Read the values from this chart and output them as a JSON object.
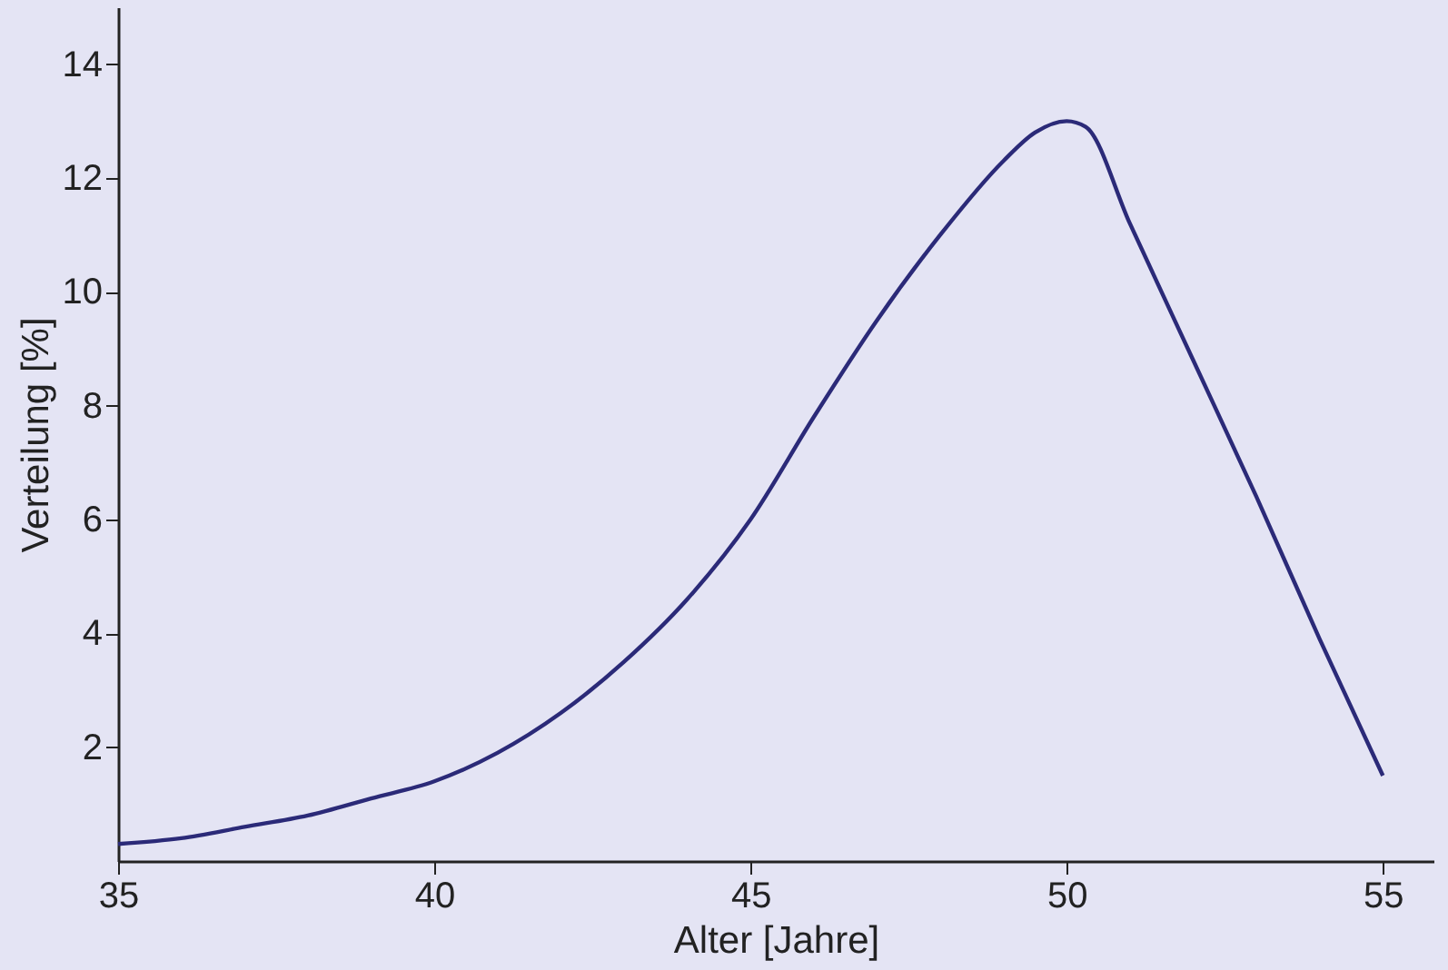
{
  "chart_data": {
    "type": "line",
    "xlabel": "Alter [Jahre]",
    "ylabel": "Verteilung [%]",
    "x": [
      35,
      36,
      37,
      38,
      39,
      40,
      41,
      42,
      43,
      44,
      45,
      46,
      47,
      48,
      49,
      49.5,
      50,
      50.3,
      51,
      52,
      53,
      54,
      55
    ],
    "series": [
      {
        "color": "#2b2a78",
        "values": [
          0.3,
          0.4,
          0.6,
          0.8,
          1.1,
          1.4,
          1.9,
          2.6,
          3.5,
          4.6,
          6.0,
          7.8,
          9.5,
          11.0,
          12.3,
          12.8,
          13.0,
          12.9,
          11.2,
          8.8,
          6.4,
          3.9,
          1.5
        ]
      }
    ],
    "xlim": [
      35,
      55.8
    ],
    "ylim": [
      0,
      15
    ],
    "xticks": [
      35,
      40,
      45,
      50,
      55
    ],
    "yticks": [
      2,
      4,
      6,
      8,
      10,
      12,
      14
    ],
    "grid": false,
    "marker": "none",
    "line_style": "solid"
  }
}
